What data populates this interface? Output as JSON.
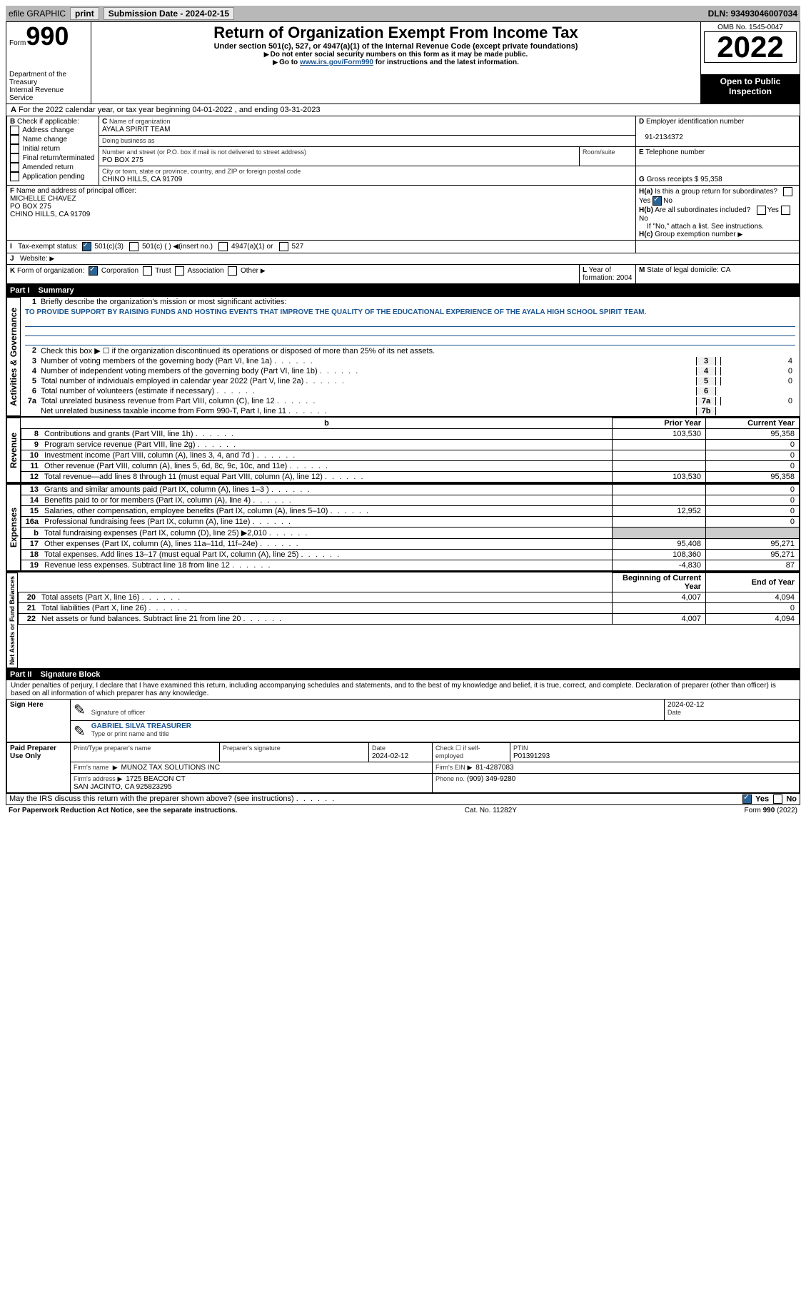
{
  "top": {
    "efile": "efile GRAPHIC",
    "print": "print",
    "submission": "Submission Date - 2024-02-15",
    "dln": "DLN: 93493046007034"
  },
  "header": {
    "form_label": "Form",
    "form_no": "990",
    "dept": "Department of the Treasury\nInternal Revenue Service",
    "title": "Return of Organization Exempt From Income Tax",
    "subtitle": "Under section 501(c), 527, or 4947(a)(1) of the Internal Revenue Code (except private foundations)",
    "instr1": "Do not enter social security numbers on this form as it may be made public.",
    "instr2_pre": "Go to ",
    "instr2_link": "www.irs.gov/Form990",
    "instr2_post": " for instructions and the latest information.",
    "omb": "OMB No. 1545-0047",
    "year": "2022",
    "open": "Open to Public Inspection"
  },
  "a_line": "For the 2022 calendar year, or tax year beginning 04-01-2022     , and ending 03-31-2023",
  "b": {
    "label": "Check if applicable:",
    "opts": [
      "Address change",
      "Name change",
      "Initial return",
      "Final return/terminated",
      "Amended return",
      "Application pending"
    ]
  },
  "c": {
    "name_label": "Name of organization",
    "name": "AYALA SPIRIT TEAM",
    "dba_label": "Doing business as",
    "addr_label": "Number and street (or P.O. box if mail is not delivered to street address)",
    "addr": "PO BOX 275",
    "room_label": "Room/suite",
    "city_label": "City or town, state or province, country, and ZIP or foreign postal code",
    "city": "CHINO HILLS, CA  91709"
  },
  "d": {
    "label": "Employer identification number",
    "val": "91-2134372"
  },
  "e": {
    "label": "Telephone number"
  },
  "g": {
    "label": "Gross receipts $",
    "val": "95,358"
  },
  "f": {
    "label": "Name and address of principal officer:",
    "name": "MICHELLE CHAVEZ",
    "addr1": "PO BOX 275",
    "addr2": "CHINO HILLS, CA  91709"
  },
  "h": {
    "ha": "Is this a group return for subordinates?",
    "hb": "Are all subordinates included?",
    "hb_note": "If \"No,\" attach a list. See instructions.",
    "hc": "Group exemption number"
  },
  "i": {
    "label": "Tax-exempt status:",
    "opts": [
      "501(c)(3)",
      "501(c) (   ) ◀(insert no.)",
      "4947(a)(1) or",
      "527"
    ]
  },
  "j": {
    "label": "Website:"
  },
  "k": {
    "label": "Form of organization:",
    "opts": [
      "Corporation",
      "Trust",
      "Association",
      "Other"
    ]
  },
  "l": {
    "label": "Year of formation:",
    "val": "2004"
  },
  "m": {
    "label": "State of legal domicile:",
    "val": "CA"
  },
  "part1": {
    "title": "Part I",
    "name": "Summary",
    "line1_label": "Briefly describe the organization's mission or most significant activities:",
    "mission": "TO PROVIDE SUPPORT BY RAISING FUNDS AND HOSTING EVENTS THAT IMPROVE THE QUALITY OF THE EDUCATIONAL EXPERIENCE OF THE AYALA HIGH SCHOOL SPIRIT TEAM.",
    "line2": "Check this box ▶ ☐  if the organization discontinued its operations or disposed of more than 25% of its net assets.",
    "rows": [
      {
        "n": "3",
        "lbl": "Number of voting members of the governing body (Part VI, line 1a)",
        "box": "3",
        "val": "4"
      },
      {
        "n": "4",
        "lbl": "Number of independent voting members of the governing body (Part VI, line 1b)",
        "box": "4",
        "val": "0"
      },
      {
        "n": "5",
        "lbl": "Total number of individuals employed in calendar year 2022 (Part V, line 2a)",
        "box": "5",
        "val": "0"
      },
      {
        "n": "6",
        "lbl": "Total number of volunteers (estimate if necessary)",
        "box": "6",
        "val": ""
      },
      {
        "n": "7a",
        "lbl": "Total unrelated business revenue from Part VIII, column (C), line 12",
        "box": "7a",
        "val": "0"
      },
      {
        "n": "",
        "lbl": "Net unrelated business taxable income from Form 990-T, Part I, line 11",
        "box": "7b",
        "val": ""
      }
    ],
    "sidebar1": "Activities & Governance",
    "py": "Prior Year",
    "cy": "Current Year",
    "revenue_rows": [
      {
        "n": "8",
        "lbl": "Contributions and grants (Part VIII, line 1h)",
        "py": "103,530",
        "cy": "95,358"
      },
      {
        "n": "9",
        "lbl": "Program service revenue (Part VIII, line 2g)",
        "py": "",
        "cy": "0"
      },
      {
        "n": "10",
        "lbl": "Investment income (Part VIII, column (A), lines 3, 4, and 7d )",
        "py": "",
        "cy": "0"
      },
      {
        "n": "11",
        "lbl": "Other revenue (Part VIII, column (A), lines 5, 6d, 8c, 9c, 10c, and 11e)",
        "py": "",
        "cy": "0"
      },
      {
        "n": "12",
        "lbl": "Total revenue—add lines 8 through 11 (must equal Part VIII, column (A), line 12)",
        "py": "103,530",
        "cy": "95,358"
      }
    ],
    "sidebar2": "Revenue",
    "expense_rows": [
      {
        "n": "13",
        "lbl": "Grants and similar amounts paid (Part IX, column (A), lines 1–3 )",
        "py": "",
        "cy": "0"
      },
      {
        "n": "14",
        "lbl": "Benefits paid to or for members (Part IX, column (A), line 4)",
        "py": "",
        "cy": "0"
      },
      {
        "n": "15",
        "lbl": "Salaries, other compensation, employee benefits (Part IX, column (A), lines 5–10)",
        "py": "12,952",
        "cy": "0"
      },
      {
        "n": "16a",
        "lbl": "Professional fundraising fees (Part IX, column (A), line 11e)",
        "py": "",
        "cy": "0"
      },
      {
        "n": "b",
        "lbl": "Total fundraising expenses (Part IX, column (D), line 25) ▶2,010",
        "py": "shaded",
        "cy": "shaded"
      },
      {
        "n": "17",
        "lbl": "Other expenses (Part IX, column (A), lines 11a–11d, 11f–24e)",
        "py": "95,408",
        "cy": "95,271"
      },
      {
        "n": "18",
        "lbl": "Total expenses. Add lines 13–17 (must equal Part IX, column (A), line 25)",
        "py": "108,360",
        "cy": "95,271"
      },
      {
        "n": "19",
        "lbl": "Revenue less expenses. Subtract line 18 from line 12",
        "py": "-4,830",
        "cy": "87"
      }
    ],
    "sidebar3": "Expenses",
    "boy": "Beginning of Current Year",
    "eoy": "End of Year",
    "net_rows": [
      {
        "n": "20",
        "lbl": "Total assets (Part X, line 16)",
        "py": "4,007",
        "cy": "4,094"
      },
      {
        "n": "21",
        "lbl": "Total liabilities (Part X, line 26)",
        "py": "",
        "cy": "0"
      },
      {
        "n": "22",
        "lbl": "Net assets or fund balances. Subtract line 21 from line 20",
        "py": "4,007",
        "cy": "4,094"
      }
    ],
    "sidebar4": "Net Assets or Fund Balances"
  },
  "part2": {
    "title": "Part II",
    "name": "Signature Block",
    "penalties": "Under penalties of perjury, I declare that I have examined this return, including accompanying schedules and statements, and to the best of my knowledge and belief, it is true, correct, and complete. Declaration of preparer (other than officer) is based on all information of which preparer has any knowledge.",
    "sign_here": "Sign Here",
    "sig_officer": "Signature of officer",
    "sig_date": "2024-02-12",
    "date_lbl": "Date",
    "officer_name": "GABRIEL SILVA  TREASURER",
    "type_name_lbl": "Type or print name and title",
    "paid_prep": "Paid Preparer Use Only",
    "prep_name_lbl": "Print/Type preparer's name",
    "prep_sig_lbl": "Preparer's signature",
    "prep_date_lbl": "Date",
    "prep_date": "2024-02-12",
    "check_self": "Check ☐  if self-employed",
    "ptin_lbl": "PTIN",
    "ptin": "P01391293",
    "firm_name_lbl": "Firm's name",
    "firm_name": "MUNOZ TAX SOLUTIONS INC",
    "firm_ein_lbl": "Firm's EIN",
    "firm_ein": "81-4287083",
    "firm_addr_lbl": "Firm's address",
    "firm_addr": "1725 BEACON CT\nSAN JACINTO, CA  925823295",
    "phone_lbl": "Phone no.",
    "phone": "(909) 349-9280",
    "irs_q": "May the IRS discuss this return with the preparer shown above? (see instructions)",
    "yes": "Yes",
    "no": "No"
  },
  "footer": {
    "pra": "For Paperwork Reduction Act Notice, see the separate instructions.",
    "cat": "Cat. No. 11282Y",
    "form": "Form 990 (2022)"
  }
}
